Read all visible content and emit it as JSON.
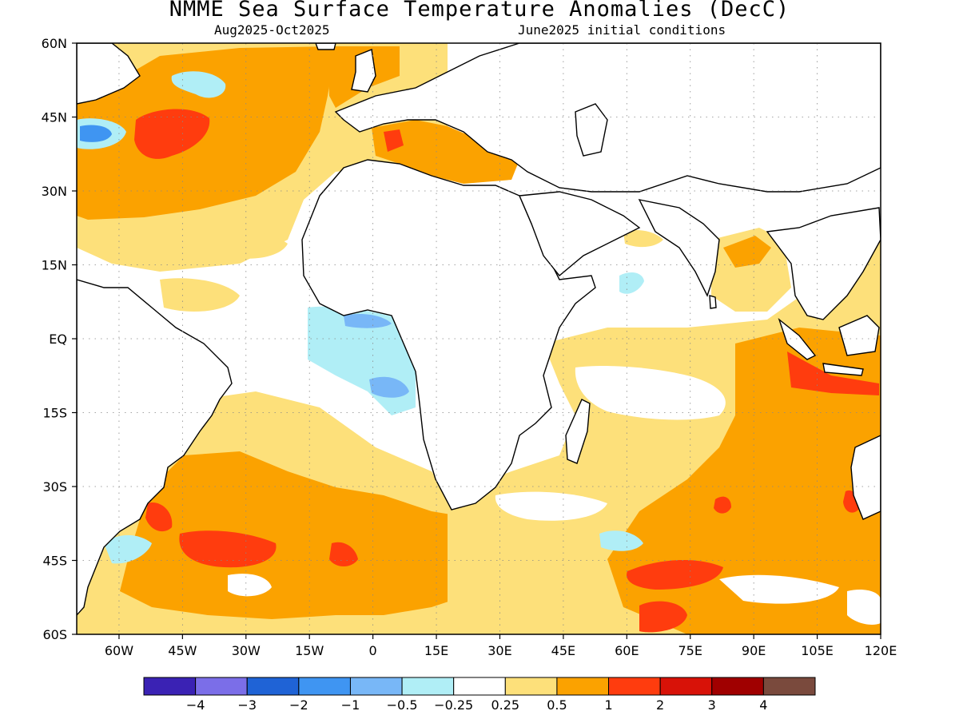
{
  "title": "NMME Sea Surface Temperature Anomalies (DecC)",
  "subtitle_left": "Aug2025-Oct2025",
  "subtitle_right": "June2025 initial conditions",
  "chart_data": {
    "type": "heatmap",
    "title": "NMME Sea Surface Temperature Anomalies (DecC)",
    "lon_range": [
      -70,
      120
    ],
    "lat_range": [
      -60,
      60
    ],
    "x_ticks": [
      {
        "value": -60,
        "label": "60W"
      },
      {
        "value": -45,
        "label": "45W"
      },
      {
        "value": -30,
        "label": "30W"
      },
      {
        "value": -15,
        "label": "15W"
      },
      {
        "value": 0,
        "label": "0"
      },
      {
        "value": 15,
        "label": "15E"
      },
      {
        "value": 30,
        "label": "30E"
      },
      {
        "value": 45,
        "label": "45E"
      },
      {
        "value": 60,
        "label": "60E"
      },
      {
        "value": 75,
        "label": "75E"
      },
      {
        "value": 90,
        "label": "90E"
      },
      {
        "value": 105,
        "label": "105E"
      },
      {
        "value": 120,
        "label": "120E"
      }
    ],
    "y_ticks": [
      {
        "value": 60,
        "label": "60N"
      },
      {
        "value": 45,
        "label": "45N"
      },
      {
        "value": 30,
        "label": "30N"
      },
      {
        "value": 15,
        "label": "15N"
      },
      {
        "value": 0,
        "label": "EQ"
      },
      {
        "value": -15,
        "label": "15S"
      },
      {
        "value": -30,
        "label": "30S"
      },
      {
        "value": -45,
        "label": "45S"
      },
      {
        "value": -60,
        "label": "60S"
      }
    ],
    "grid": true,
    "colorbar": {
      "colors": [
        "#3a22b4",
        "#7b6ee8",
        "#1f63d6",
        "#3f95f2",
        "#78b7f7",
        "#b0eef6",
        "#ffffff",
        "#fde07a",
        "#fba200",
        "#ff3c0e",
        "#d81208",
        "#a00000",
        "#7a4a3d"
      ],
      "labels": [
        "-4",
        "-3",
        "-2",
        "-1",
        "-0.5",
        "-0.25",
        "0.25",
        "0.5",
        "1",
        "2",
        "3",
        "4"
      ]
    },
    "regions": [
      {
        "name": "North Atlantic warm anomaly",
        "level": "0.5 to 1"
      },
      {
        "name": "North Atlantic hot spot near 40N 40W",
        "level": "1 to 2"
      },
      {
        "name": "Gulf of Guinea cool anomaly",
        "level": "-1 to -0.25"
      },
      {
        "name": "Mediterranean warm anomaly",
        "level": "0.5 to 2"
      },
      {
        "name": "Eastern Indian Ocean warm anomaly",
        "level": "1 to 2"
      },
      {
        "name": "Southern Ocean warm belt",
        "level": "0.5 to 2"
      }
    ]
  }
}
